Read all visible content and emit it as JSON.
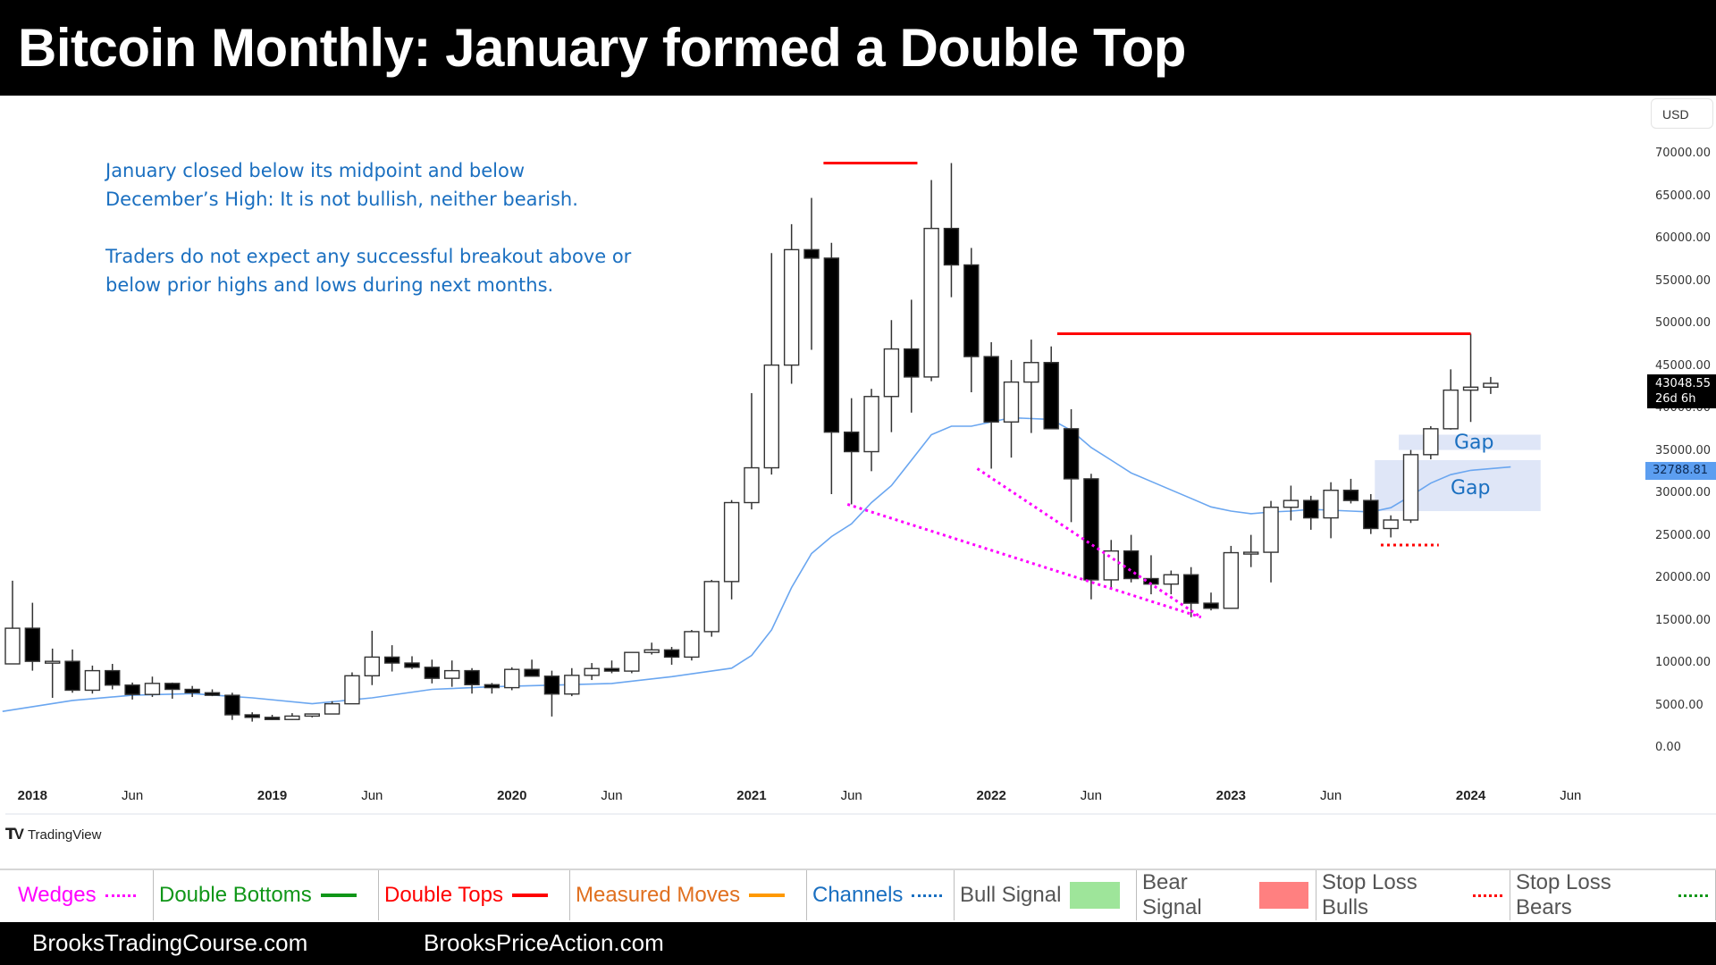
{
  "title": "Bitcoin Monthly: January formed a Double Top",
  "annotation": {
    "para1": "January closed below its midpoint and below December’s High: It is not bullish, neither bearish.",
    "para2": "Traders do not expect any successful breakout above or below prior highs and lows during next months."
  },
  "price_axis": {
    "currency_button": "USD",
    "ticks": [
      "70000.00",
      "65000.00",
      "60000.00",
      "55000.00",
      "50000.00",
      "45000.00",
      "40000.00",
      "35000.00",
      "30000.00",
      "25000.00",
      "20000.00",
      "15000.00",
      "10000.00",
      "5000.00",
      "0.00"
    ],
    "last_price": "43048.55",
    "countdown": "26d 6h",
    "ma_value": "32788.81"
  },
  "time_axis": {
    "labels": [
      {
        "text": "2018",
        "index": 1,
        "year": true
      },
      {
        "text": "Jun",
        "index": 6,
        "year": false
      },
      {
        "text": "2019",
        "index": 13,
        "year": true
      },
      {
        "text": "Jun",
        "index": 18,
        "year": false
      },
      {
        "text": "2020",
        "index": 25,
        "year": true
      },
      {
        "text": "Jun",
        "index": 30,
        "year": false
      },
      {
        "text": "2021",
        "index": 37,
        "year": true
      },
      {
        "text": "Jun",
        "index": 42,
        "year": false
      },
      {
        "text": "2022",
        "index": 49,
        "year": true
      },
      {
        "text": "Jun",
        "index": 54,
        "year": false
      },
      {
        "text": "2023",
        "index": 61,
        "year": true
      },
      {
        "text": "Jun",
        "index": 66,
        "year": false
      },
      {
        "text": "2024",
        "index": 73,
        "year": true
      },
      {
        "text": "Jun",
        "index": 78,
        "year": false
      }
    ]
  },
  "gaps": [
    {
      "label": "Gap",
      "low": 35200,
      "high": 37000,
      "from_index": 69.4,
      "to_index": 76.5
    },
    {
      "label": "Gap",
      "low": 28000,
      "high": 34000,
      "from_index": 68.2,
      "to_index": 76.5
    }
  ],
  "branding": {
    "tradingview": "TradingView",
    "footer_left": "BrooksTradingCourse.com",
    "footer_right": "BrooksPriceAction.com"
  },
  "legend": [
    {
      "label": "Wedges",
      "color": "#ff00ff",
      "swatch": "dotted"
    },
    {
      "label": "Double Bottoms",
      "color": "#109618",
      "swatch": "solid"
    },
    {
      "label": "Double Tops",
      "color": "#ff0000",
      "swatch": "solid"
    },
    {
      "label": "Measured Moves",
      "color": "#e07020",
      "swatch": "solid-orange"
    },
    {
      "label": "Channels",
      "color": "#1a6fc0",
      "swatch": "dotted"
    },
    {
      "label": "Bull Signal",
      "color": "#555555",
      "swatch": "box",
      "box_color": "#9ee59a"
    },
    {
      "label": "Bear Signal",
      "color": "#555555",
      "swatch": "box",
      "box_color": "#ff8080"
    },
    {
      "label": "Stop Loss Bulls",
      "color": "#555555",
      "swatch": "dotted",
      "line_color": "#ff0000"
    },
    {
      "label": "Stop Loss Bears",
      "color": "#555555",
      "swatch": "dotted",
      "line_color": "#109618"
    }
  ],
  "colors": {
    "bull_body": "#ffffff",
    "bear_body": "#000000",
    "wick": "#333333",
    "ema": "#6aa6f0",
    "double_top": "#ff0000",
    "wedge": "#ff00ff",
    "gap_fill": "#dfe6f7",
    "stop_loss_bulls": "#ff0000",
    "annotation_text": "#1a6fc0"
  },
  "chart_data": {
    "type": "candlestick",
    "title": "Bitcoin Monthly: January formed a Double Top",
    "xlabel": "",
    "ylabel": "USD",
    "ylim": [
      0,
      72000
    ],
    "start": "2017-12",
    "interval": "1M",
    "ohlc": [
      [
        10000,
        19800,
        10900,
        14200
      ],
      [
        14200,
        17200,
        9200,
        10300
      ],
      [
        10300,
        11800,
        6000,
        10300
      ],
      [
        10300,
        11700,
        6600,
        6900
      ],
      [
        6900,
        9800,
        6500,
        9200
      ],
      [
        9200,
        10000,
        7000,
        7500
      ],
      [
        7500,
        7800,
        5800,
        6400
      ],
      [
        6400,
        8500,
        6100,
        7700
      ],
      [
        7700,
        7800,
        5900,
        7000
      ],
      [
        7000,
        7400,
        6100,
        6600
      ],
      [
        6600,
        7000,
        6200,
        6300
      ],
      [
        6300,
        6600,
        3400,
        4000
      ],
      [
        4000,
        4300,
        3200,
        3700
      ],
      [
        3700,
        4000,
        3400,
        3450
      ],
      [
        3450,
        4200,
        3400,
        3850
      ],
      [
        3850,
        4100,
        3700,
        4100
      ],
      [
        4100,
        5600,
        4100,
        5300
      ],
      [
        5300,
        9000,
        5300,
        8600
      ],
      [
        8600,
        13900,
        7500,
        10800
      ],
      [
        10800,
        12200,
        9100,
        10100
      ],
      [
        10100,
        10900,
        9400,
        9600
      ],
      [
        9600,
        10500,
        7700,
        8300
      ],
      [
        8300,
        10400,
        7300,
        9200
      ],
      [
        9200,
        9500,
        6500,
        7550
      ],
      [
        7550,
        7750,
        6500,
        7200
      ],
      [
        7200,
        9600,
        6900,
        9350
      ],
      [
        9350,
        10500,
        8500,
        8550
      ],
      [
        8550,
        9200,
        3800,
        6450
      ],
      [
        6450,
        9500,
        6200,
        8650
      ],
      [
        8650,
        10100,
        8100,
        9450
      ],
      [
        9450,
        10400,
        8900,
        9150
      ],
      [
        9150,
        11400,
        8900,
        11350
      ],
      [
        11350,
        12500,
        11100,
        11650
      ],
      [
        11650,
        12000,
        9900,
        10800
      ],
      [
        10800,
        14000,
        10400,
        13800
      ],
      [
        13800,
        19900,
        13200,
        19700
      ],
      [
        19700,
        29300,
        17600,
        29000
      ],
      [
        29000,
        41900,
        28200,
        33100
      ],
      [
        33100,
        58400,
        32300,
        45200
      ],
      [
        45200,
        61800,
        43000,
        58800
      ],
      [
        58800,
        64900,
        47000,
        57800
      ],
      [
        57800,
        59600,
        30000,
        37300
      ],
      [
        37300,
        41300,
        28800,
        35000
      ],
      [
        35000,
        42400,
        32700,
        41500
      ],
      [
        41500,
        50500,
        37300,
        47100
      ],
      [
        47100,
        52900,
        39600,
        43800
      ],
      [
        43800,
        67000,
        43300,
        61300
      ],
      [
        61300,
        69000,
        53200,
        57000
      ],
      [
        57000,
        59000,
        42000,
        46200
      ],
      [
        46200,
        47900,
        33000,
        38500
      ],
      [
        38500,
        45800,
        34300,
        43200
      ],
      [
        43200,
        48200,
        37200,
        45500
      ],
      [
        45500,
        47400,
        37700,
        37700
      ],
      [
        37700,
        40000,
        26700,
        31800
      ],
      [
        31800,
        32400,
        17600,
        19900
      ],
      [
        19900,
        24600,
        18800,
        23300
      ],
      [
        23300,
        25200,
        19600,
        20050
      ],
      [
        20050,
        22800,
        18200,
        19400
      ],
      [
        19400,
        21000,
        18200,
        20500
      ],
      [
        20500,
        21400,
        15500,
        17150
      ],
      [
        17150,
        18400,
        16300,
        16550
      ],
      [
        16550,
        23900,
        16500,
        23100
      ],
      [
        23100,
        25200,
        21400,
        23150
      ],
      [
        23150,
        29200,
        19600,
        28450
      ],
      [
        28450,
        31000,
        26900,
        29250
      ],
      [
        29250,
        29800,
        25800,
        27200
      ],
      [
        27200,
        31400,
        24800,
        30450
      ],
      [
        30450,
        31800,
        28900,
        29250
      ],
      [
        29250,
        30000,
        25300,
        25950
      ],
      [
        25950,
        27500,
        24900,
        26950
      ],
      [
        26950,
        35200,
        26600,
        34650
      ],
      [
        34650,
        38000,
        34100,
        37700
      ],
      [
        37700,
        44700,
        37600,
        42250
      ],
      [
        42250,
        48900,
        38500,
        42600
      ],
      [
        42600,
        43800,
        41800,
        43050
      ]
    ],
    "ema20": [
      [
        0,
        4600
      ],
      [
        3,
        5100
      ],
      [
        6,
        5300
      ],
      [
        9,
        5900
      ],
      [
        12,
        5900
      ],
      [
        15,
        5800
      ],
      [
        18,
        6100
      ],
      [
        21,
        6200
      ],
      [
        24,
        5700
      ],
      [
        27,
        5350
      ],
      [
        30,
        5300
      ],
      [
        33,
        6300
      ],
      [
        36,
        7200
      ],
      [
        39,
        7500
      ],
      [
        42,
        7500
      ],
      [
        45,
        8400
      ],
      [
        48,
        8800
      ],
      [
        51,
        9600
      ],
      [
        54,
        9800
      ],
      [
        57,
        10700
      ],
      [
        60,
        11200
      ],
      [
        63,
        13000
      ],
      [
        66,
        14600
      ],
      [
        69,
        17800
      ],
      [
        72,
        21300
      ],
      [
        75,
        26000
      ],
      [
        78,
        27500
      ],
      [
        81,
        29700
      ],
      [
        84,
        31700
      ],
      [
        87,
        34200
      ],
      [
        90,
        36500
      ],
      [
        93,
        37400
      ],
      [
        96,
        38000
      ],
      [
        99,
        38000
      ]
    ],
    "ema20_points_indexed": [
      [
        -0.5,
        4400
      ],
      [
        3,
        5700
      ],
      [
        6,
        6300
      ],
      [
        9,
        6500
      ],
      [
        12,
        6000
      ],
      [
        15,
        5300
      ],
      [
        18,
        6000
      ],
      [
        21,
        7000
      ],
      [
        24,
        7300
      ],
      [
        27,
        7500
      ],
      [
        30,
        7700
      ],
      [
        33,
        8500
      ],
      [
        36,
        9500
      ],
      [
        37,
        11000
      ],
      [
        38,
        14000
      ],
      [
        39,
        19000
      ],
      [
        40,
        23000
      ],
      [
        41,
        25000
      ],
      [
        42,
        26500
      ],
      [
        43,
        29000
      ],
      [
        44,
        31000
      ],
      [
        45,
        34000
      ],
      [
        46,
        37000
      ],
      [
        47,
        38000
      ],
      [
        48,
        38000
      ],
      [
        50,
        39000
      ],
      [
        52,
        38800
      ],
      [
        53,
        37500
      ],
      [
        54,
        35500
      ],
      [
        55,
        34000
      ],
      [
        56,
        32500
      ],
      [
        57,
        31500
      ],
      [
        58,
        30500
      ],
      [
        59,
        29500
      ],
      [
        60,
        28500
      ],
      [
        61,
        28000
      ],
      [
        62,
        27700
      ],
      [
        63,
        27900
      ],
      [
        64,
        28000
      ],
      [
        65,
        28200
      ],
      [
        66,
        28100
      ],
      [
        67,
        28000
      ],
      [
        68,
        27900
      ],
      [
        69,
        28400
      ],
      [
        70,
        29800
      ],
      [
        71,
        31300
      ],
      [
        72,
        32300
      ],
      [
        73,
        32800
      ],
      [
        75,
        33200
      ]
    ],
    "annotations": {
      "double_top_lines": [
        {
          "from_index": 40.6,
          "to_index": 45.3,
          "price": 69000
        },
        {
          "from_index": 52.3,
          "to_index": 73.0,
          "price": 48900
        }
      ],
      "wedge_lines": [
        {
          "from": [
            41.8,
            28800
          ],
          "to": [
            59.5,
            15500
          ]
        },
        {
          "from": [
            48.3,
            33000
          ],
          "to": [
            59.5,
            15500
          ]
        }
      ],
      "stop_loss_bulls": {
        "from_index": 68.5,
        "to_index": 71.4,
        "price": 24000
      }
    }
  }
}
